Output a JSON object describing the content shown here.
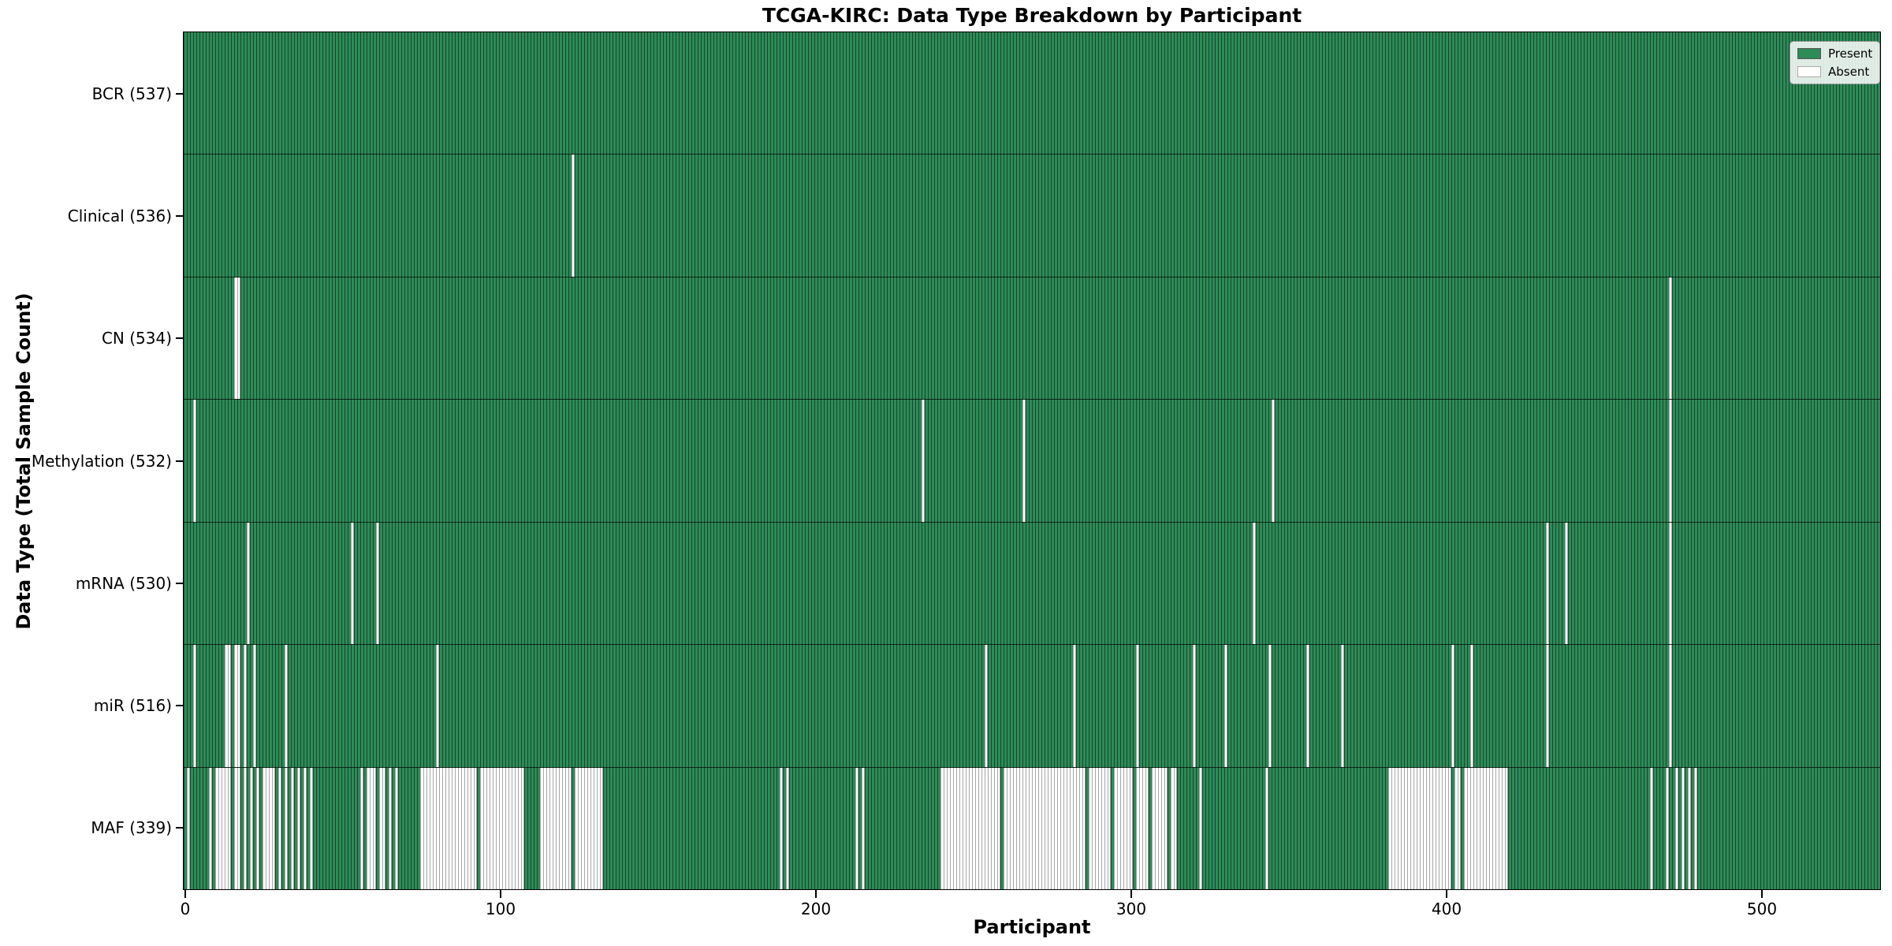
{
  "colors": {
    "present": "#2e8b57",
    "absent": "#ffffff",
    "bar_edge": "#14482e",
    "absent_edge": "#a6a6a6",
    "text": "#000000"
  },
  "chart_data": {
    "type": "heatmap",
    "title": "TCGA-KIRC: Data Type Breakdown by Participant",
    "xlabel": "Participant",
    "ylabel": "Data Type (Total Sample Count)",
    "x_ticks": [
      0,
      100,
      200,
      300,
      400,
      500
    ],
    "n_participants": 537,
    "x_slots": 538,
    "grid": false,
    "legend": {
      "position": "upper right",
      "entries": [
        {
          "label": "Present",
          "color": "#2e8b57"
        },
        {
          "label": "Absent",
          "color": "#ffffff"
        }
      ]
    },
    "rows": [
      {
        "data_type": "BCR",
        "label": "BCR (537)",
        "present_count": 537,
        "absent_ranges": []
      },
      {
        "data_type": "Clinical",
        "label": "Clinical (536)",
        "present_count": 536,
        "absent_ranges": [
          [
            123,
            123
          ]
        ]
      },
      {
        "data_type": "CN",
        "label": "CN (534)",
        "present_count": 534,
        "absent_ranges": [
          [
            16,
            17
          ],
          [
            471,
            471
          ]
        ]
      },
      {
        "data_type": "Methylation",
        "label": "Methylation (532)",
        "present_count": 532,
        "absent_ranges": [
          [
            3,
            3
          ],
          [
            234,
            234
          ],
          [
            266,
            266
          ],
          [
            345,
            345
          ],
          [
            471,
            471
          ]
        ]
      },
      {
        "data_type": "mRNA",
        "label": "mRNA (530)",
        "present_count": 530,
        "absent_ranges": [
          [
            20,
            20
          ],
          [
            53,
            53
          ],
          [
            61,
            61
          ],
          [
            339,
            339
          ],
          [
            432,
            432
          ],
          [
            438,
            438
          ],
          [
            471,
            471
          ]
        ]
      },
      {
        "data_type": "miR",
        "label": "miR (516)",
        "present_count": 516,
        "absent_ranges": [
          [
            3,
            3
          ],
          [
            13,
            14
          ],
          [
            16,
            17
          ],
          [
            19,
            19
          ],
          [
            22,
            22
          ],
          [
            32,
            32
          ],
          [
            80,
            80
          ],
          [
            254,
            254
          ],
          [
            282,
            282
          ],
          [
            302,
            302
          ],
          [
            320,
            320
          ],
          [
            330,
            330
          ],
          [
            344,
            344
          ],
          [
            356,
            356
          ],
          [
            367,
            367
          ],
          [
            402,
            402
          ],
          [
            408,
            408
          ],
          [
            432,
            432
          ],
          [
            471,
            471
          ]
        ]
      },
      {
        "data_type": "MAF",
        "label": "MAF (339)",
        "present_count": 339,
        "absent_ranges": [
          [
            1,
            1
          ],
          [
            8,
            8
          ],
          [
            10,
            14
          ],
          [
            16,
            17
          ],
          [
            19,
            19
          ],
          [
            21,
            21
          ],
          [
            23,
            23
          ],
          [
            25,
            28
          ],
          [
            30,
            30
          ],
          [
            32,
            32
          ],
          [
            34,
            34
          ],
          [
            36,
            36
          ],
          [
            38,
            38
          ],
          [
            40,
            40
          ],
          [
            56,
            56
          ],
          [
            58,
            60
          ],
          [
            62,
            63
          ],
          [
            65,
            65
          ],
          [
            67,
            67
          ],
          [
            75,
            92
          ],
          [
            94,
            107
          ],
          [
            113,
            122
          ],
          [
            124,
            132
          ],
          [
            189,
            189
          ],
          [
            191,
            191
          ],
          [
            213,
            213
          ],
          [
            215,
            215
          ],
          [
            240,
            258
          ],
          [
            260,
            285
          ],
          [
            287,
            293
          ],
          [
            295,
            300
          ],
          [
            302,
            305
          ],
          [
            307,
            311
          ],
          [
            313,
            314
          ],
          [
            322,
            322
          ],
          [
            343,
            343
          ],
          [
            382,
            401
          ],
          [
            403,
            404
          ],
          [
            406,
            419
          ],
          [
            465,
            465
          ],
          [
            470,
            470
          ],
          [
            473,
            473
          ],
          [
            475,
            475
          ],
          [
            477,
            477
          ],
          [
            479,
            479
          ]
        ]
      }
    ]
  }
}
